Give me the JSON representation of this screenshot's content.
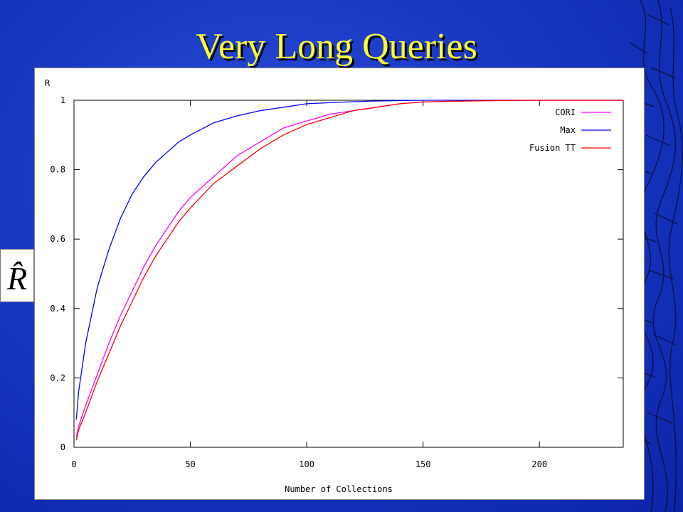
{
  "slide": {
    "title": "Very Long Queries",
    "side_symbol": "R̂"
  },
  "colors": {
    "background": "#1838c4",
    "title": "#ffff33",
    "cori": "#ff00ff",
    "max": "#0000ff",
    "fusion_tt": "#ff0000"
  },
  "chart_data": {
    "type": "line",
    "title": "",
    "xlabel": "Number of Collections",
    "ylabel": "R",
    "xlim": [
      0,
      236
    ],
    "ylim": [
      0,
      1
    ],
    "x_ticks": [
      "0",
      "50",
      "100",
      "150",
      "200"
    ],
    "y_ticks": [
      "0",
      "0.2",
      "0.4",
      "0.6",
      "0.8",
      "1"
    ],
    "grid": false,
    "legend_position": "top-right",
    "series": [
      {
        "name": "CORI",
        "color": "#ff00ff",
        "x": [
          1,
          2,
          5,
          10,
          15,
          20,
          25,
          30,
          35,
          40,
          45,
          50,
          60,
          70,
          80,
          90,
          100,
          110,
          120,
          130,
          140,
          150,
          160,
          170,
          180,
          200,
          220,
          236
        ],
        "y": [
          0.03,
          0.06,
          0.12,
          0.21,
          0.3,
          0.38,
          0.45,
          0.52,
          0.58,
          0.63,
          0.68,
          0.72,
          0.78,
          0.84,
          0.88,
          0.92,
          0.94,
          0.96,
          0.97,
          0.98,
          0.99,
          0.995,
          0.997,
          0.998,
          0.999,
          1.0,
          1.0,
          1.0
        ]
      },
      {
        "name": "Max",
        "color": "#0000ff",
        "x": [
          1,
          2,
          5,
          10,
          15,
          20,
          25,
          30,
          35,
          40,
          45,
          50,
          60,
          70,
          80,
          90,
          100,
          110,
          120,
          130,
          150,
          200,
          236
        ],
        "y": [
          0.08,
          0.16,
          0.3,
          0.46,
          0.57,
          0.66,
          0.73,
          0.78,
          0.82,
          0.85,
          0.88,
          0.9,
          0.935,
          0.955,
          0.97,
          0.98,
          0.99,
          0.993,
          0.996,
          0.998,
          1.0,
          1.0,
          1.0
        ]
      },
      {
        "name": "Fusion TT",
        "color": "#ff0000",
        "x": [
          1,
          2,
          5,
          10,
          15,
          20,
          25,
          30,
          35,
          40,
          45,
          50,
          60,
          70,
          80,
          90,
          100,
          110,
          120,
          130,
          140,
          150,
          160,
          170,
          180,
          200,
          220,
          236
        ],
        "y": [
          0.02,
          0.05,
          0.1,
          0.19,
          0.27,
          0.35,
          0.42,
          0.49,
          0.55,
          0.6,
          0.65,
          0.69,
          0.76,
          0.81,
          0.86,
          0.9,
          0.93,
          0.95,
          0.97,
          0.98,
          0.99,
          0.995,
          0.997,
          0.998,
          0.999,
          1.0,
          1.0,
          1.0
        ]
      }
    ]
  }
}
